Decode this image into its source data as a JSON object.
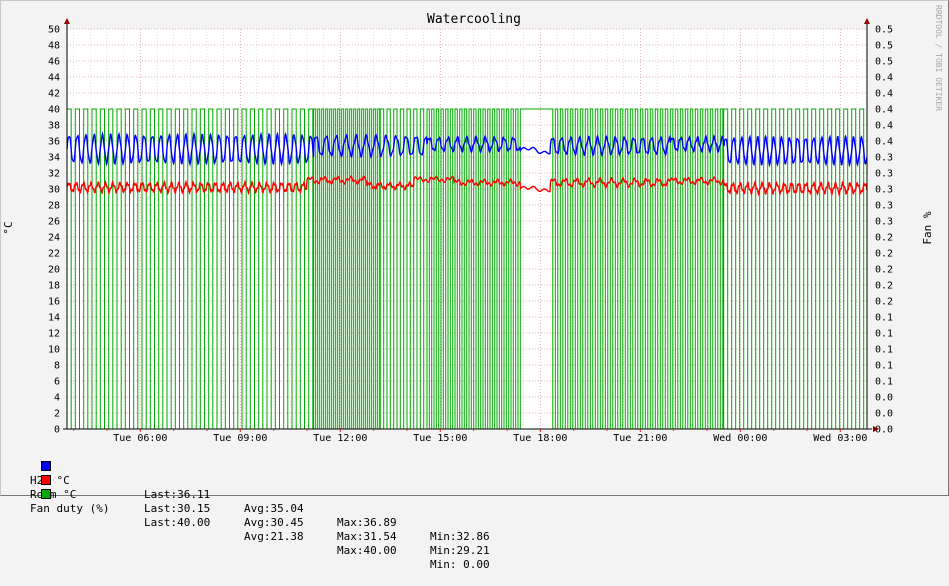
{
  "chart_data": {
    "type": "line",
    "title": "Watercooling",
    "ylabel": "°C",
    "y2label": "Fan %",
    "watermark": "RRDTOOL / TOBI OETIKER",
    "ylim": [
      0,
      50
    ],
    "y2lim": [
      0,
      0.5
    ],
    "yticks": [
      "0",
      "2",
      "4",
      "6",
      "8",
      "10",
      "12",
      "14",
      "16",
      "18",
      "20",
      "22",
      "24",
      "26",
      "28",
      "30",
      "32",
      "34",
      "36",
      "38",
      "40",
      "42",
      "44",
      "46",
      "48",
      "50"
    ],
    "y2ticks": [
      "0.0",
      "0.0",
      "0.0",
      "0.1",
      "0.1",
      "0.1",
      "0.1",
      "0.1",
      "0.2",
      "0.2",
      "0.2",
      "0.2",
      "0.2",
      "0.3",
      "0.3",
      "0.3",
      "0.3",
      "0.3",
      "0.4",
      "0.4",
      "0.4",
      "0.4",
      "0.4",
      "0.5",
      "0.5",
      "0.5"
    ],
    "xlim_hours": [
      3.8,
      27.8
    ],
    "xticks": [
      {
        "hour": 6,
        "label": "Tue 06:00"
      },
      {
        "hour": 9,
        "label": "Tue 09:00"
      },
      {
        "hour": 12,
        "label": "Tue 12:00"
      },
      {
        "hour": 15,
        "label": "Tue 15:00"
      },
      {
        "hour": 18,
        "label": "Tue 18:00"
      },
      {
        "hour": 21,
        "label": "Tue 21:00"
      },
      {
        "hour": 24,
        "label": "Wed 00:00"
      },
      {
        "hour": 27,
        "label": "Wed 03:00"
      }
    ],
    "grid": true,
    "legend_position": "bottom",
    "series": [
      {
        "name": "H2O °C",
        "color": "#0000ff",
        "last": "36.11",
        "avg": "35.04",
        "max": "36.89",
        "min": "32.86",
        "segments": [
          {
            "from": 3.8,
            "to": 11.2,
            "mean": 35.0,
            "amp": 1.7,
            "period": 0.25
          },
          {
            "from": 11.2,
            "to": 14.6,
            "mean": 35.4,
            "amp": 1.2,
            "period": 0.3
          },
          {
            "from": 14.6,
            "to": 17.4,
            "mean": 35.6,
            "amp": 0.8,
            "period": 0.28
          },
          {
            "from": 17.4,
            "to": 18.3,
            "mean": 34.8,
            "amp": 0.3,
            "period": 1.0
          },
          {
            "from": 18.3,
            "to": 21.9,
            "mean": 35.4,
            "amp": 1.0,
            "period": 0.27
          },
          {
            "from": 21.9,
            "to": 23.5,
            "mean": 35.6,
            "amp": 0.8,
            "period": 0.25
          },
          {
            "from": 23.5,
            "to": 27.8,
            "mean": 34.8,
            "amp": 1.6,
            "period": 0.24
          }
        ]
      },
      {
        "name": "Room °C",
        "color": "#ff0000",
        "last": "30.15",
        "avg": "30.45",
        "max": "31.54",
        "min": "29.21",
        "segments": [
          {
            "from": 3.8,
            "to": 11.0,
            "mean": 30.2,
            "amp": 0.5,
            "period": 0.22
          },
          {
            "from": 11.0,
            "to": 12.8,
            "mean": 31.1,
            "amp": 0.3,
            "period": 0.4
          },
          {
            "from": 12.8,
            "to": 14.2,
            "mean": 30.4,
            "amp": 0.3,
            "period": 0.3
          },
          {
            "from": 14.2,
            "to": 15.4,
            "mean": 31.2,
            "amp": 0.2,
            "period": 0.5
          },
          {
            "from": 15.4,
            "to": 17.4,
            "mean": 30.8,
            "amp": 0.25,
            "period": 0.4
          },
          {
            "from": 17.4,
            "to": 18.3,
            "mean": 30.0,
            "amp": 0.2,
            "period": 1.0
          },
          {
            "from": 18.3,
            "to": 21.9,
            "mean": 30.8,
            "amp": 0.4,
            "period": 0.35
          },
          {
            "from": 21.9,
            "to": 23.5,
            "mean": 31.0,
            "amp": 0.3,
            "period": 0.4
          },
          {
            "from": 23.5,
            "to": 27.8,
            "mean": 30.1,
            "amp": 0.55,
            "period": 0.22
          }
        ]
      },
      {
        "name": "Fan duty (%)",
        "color": "#00aa00",
        "last": "40.00",
        "avg": "21.38",
        "max": "40.00",
        "min": " 0.00",
        "high": 40,
        "low": 0,
        "segments": [
          {
            "from": 3.8,
            "to": 11.2,
            "period": 0.25,
            "duty": 0.5
          },
          {
            "from": 11.2,
            "to": 13.2,
            "period": 0.12,
            "duty": 0.5
          },
          {
            "from": 13.2,
            "to": 14.6,
            "period": 0.2,
            "duty": 0.5
          },
          {
            "from": 14.6,
            "to": 17.4,
            "period": 0.14,
            "duty": 0.5
          },
          {
            "from": 17.4,
            "to": 18.3,
            "period": 1.0,
            "duty": 1.0
          },
          {
            "from": 18.3,
            "to": 23.5,
            "period": 0.15,
            "duty": 0.5
          },
          {
            "from": 23.5,
            "to": 27.8,
            "period": 0.24,
            "duty": 0.5
          }
        ]
      }
    ]
  },
  "legend": [
    {
      "color": "#0000ff",
      "name": "H2O °C",
      "last": "Last:36.11",
      "avg": "Avg:35.04",
      "max": "Max:36.89",
      "min": "Min:32.86"
    },
    {
      "color": "#ff0000",
      "name": "Room °C",
      "last": "Last:30.15",
      "avg": "Avg:30.45",
      "max": "Max:31.54",
      "min": "Min:29.21"
    },
    {
      "color": "#00aa00",
      "name": "Fan duty (%)",
      "last": "Last:40.00",
      "avg": "Avg:21.38",
      "max": "Max:40.00",
      "min": "Min: 0.00"
    }
  ]
}
